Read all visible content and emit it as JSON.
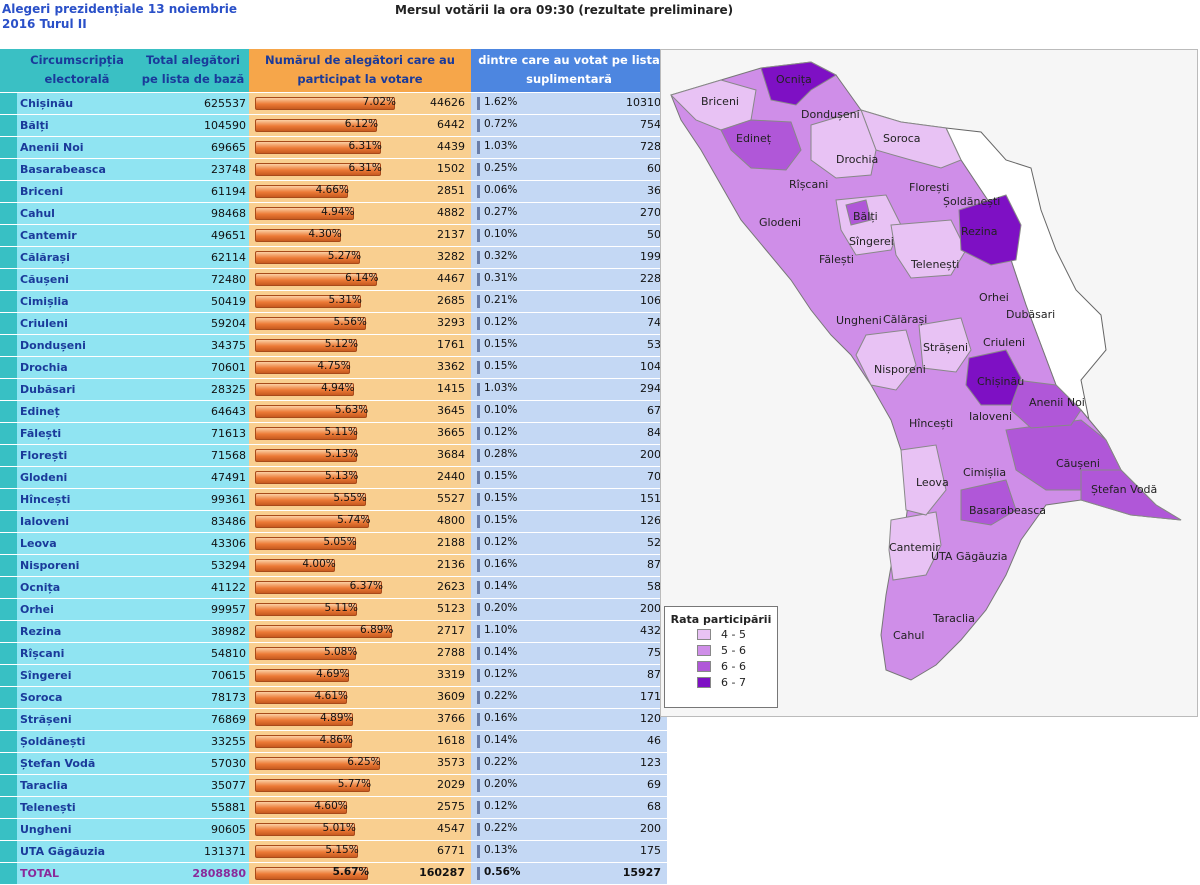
{
  "header": {
    "title": "Alegeri prezidențiale 13 noiembrie 2016 Turul II",
    "subtitle": "Mersul votării la ora 09:30 (rezultate preliminare)"
  },
  "columns": {
    "col1": "Circumscripția electorală",
    "col2": "Total alegători pe lista de bază",
    "col3": "Numărul de alegători care au participat la votare",
    "col4": "dintre care au votat pe lista suplimentară"
  },
  "rows": [
    {
      "name": "Chișinău",
      "total": "625537",
      "pct": "7.02%",
      "voted": "44626",
      "spct": "1.62%",
      "sval": "10310"
    },
    {
      "name": "Bălți",
      "total": "104590",
      "pct": "6.12%",
      "voted": "6442",
      "spct": "0.72%",
      "sval": "754"
    },
    {
      "name": "Anenii Noi",
      "total": "69665",
      "pct": "6.31%",
      "voted": "4439",
      "spct": "1.03%",
      "sval": "728"
    },
    {
      "name": "Basarabeasca",
      "total": "23748",
      "pct": "6.31%",
      "voted": "1502",
      "spct": "0.25%",
      "sval": "60"
    },
    {
      "name": "Briceni",
      "total": "61194",
      "pct": "4.66%",
      "voted": "2851",
      "spct": "0.06%",
      "sval": "36"
    },
    {
      "name": "Cahul",
      "total": "98468",
      "pct": "4.94%",
      "voted": "4882",
      "spct": "0.27%",
      "sval": "270"
    },
    {
      "name": "Cantemir",
      "total": "49651",
      "pct": "4.30%",
      "voted": "2137",
      "spct": "0.10%",
      "sval": "50"
    },
    {
      "name": "Călărași",
      "total": "62114",
      "pct": "5.27%",
      "voted": "3282",
      "spct": "0.32%",
      "sval": "199"
    },
    {
      "name": "Căușeni",
      "total": "72480",
      "pct": "6.14%",
      "voted": "4467",
      "spct": "0.31%",
      "sval": "228"
    },
    {
      "name": "Cimișlia",
      "total": "50419",
      "pct": "5.31%",
      "voted": "2685",
      "spct": "0.21%",
      "sval": "106"
    },
    {
      "name": "Criuleni",
      "total": "59204",
      "pct": "5.56%",
      "voted": "3293",
      "spct": "0.12%",
      "sval": "74"
    },
    {
      "name": "Dondușeni",
      "total": "34375",
      "pct": "5.12%",
      "voted": "1761",
      "spct": "0.15%",
      "sval": "53"
    },
    {
      "name": "Drochia",
      "total": "70601",
      "pct": "4.75%",
      "voted": "3362",
      "spct": "0.15%",
      "sval": "104"
    },
    {
      "name": "Dubăsari",
      "total": "28325",
      "pct": "4.94%",
      "voted": "1415",
      "spct": "1.03%",
      "sval": "294"
    },
    {
      "name": "Edineț",
      "total": "64643",
      "pct": "5.63%",
      "voted": "3645",
      "spct": "0.10%",
      "sval": "67"
    },
    {
      "name": "Fălești",
      "total": "71613",
      "pct": "5.11%",
      "voted": "3665",
      "spct": "0.12%",
      "sval": "84"
    },
    {
      "name": "Florești",
      "total": "71568",
      "pct": "5.13%",
      "voted": "3684",
      "spct": "0.28%",
      "sval": "200"
    },
    {
      "name": "Glodeni",
      "total": "47491",
      "pct": "5.13%",
      "voted": "2440",
      "spct": "0.15%",
      "sval": "70"
    },
    {
      "name": "Hîncești",
      "total": "99361",
      "pct": "5.55%",
      "voted": "5527",
      "spct": "0.15%",
      "sval": "151"
    },
    {
      "name": "Ialoveni",
      "total": "83486",
      "pct": "5.74%",
      "voted": "4800",
      "spct": "0.15%",
      "sval": "126"
    },
    {
      "name": "Leova",
      "total": "43306",
      "pct": "5.05%",
      "voted": "2188",
      "spct": "0.12%",
      "sval": "52"
    },
    {
      "name": "Nisporeni",
      "total": "53294",
      "pct": "4.00%",
      "voted": "2136",
      "spct": "0.16%",
      "sval": "87"
    },
    {
      "name": "Ocnița",
      "total": "41122",
      "pct": "6.37%",
      "voted": "2623",
      "spct": "0.14%",
      "sval": "58"
    },
    {
      "name": "Orhei",
      "total": "99957",
      "pct": "5.11%",
      "voted": "5123",
      "spct": "0.20%",
      "sval": "200"
    },
    {
      "name": "Rezina",
      "total": "38982",
      "pct": "6.89%",
      "voted": "2717",
      "spct": "1.10%",
      "sval": "432"
    },
    {
      "name": "Rîșcani",
      "total": "54810",
      "pct": "5.08%",
      "voted": "2788",
      "spct": "0.14%",
      "sval": "75"
    },
    {
      "name": "Sîngerei",
      "total": "70615",
      "pct": "4.69%",
      "voted": "3319",
      "spct": "0.12%",
      "sval": "87"
    },
    {
      "name": "Soroca",
      "total": "78173",
      "pct": "4.61%",
      "voted": "3609",
      "spct": "0.22%",
      "sval": "171"
    },
    {
      "name": "Strășeni",
      "total": "76869",
      "pct": "4.89%",
      "voted": "3766",
      "spct": "0.16%",
      "sval": "120"
    },
    {
      "name": "Șoldănești",
      "total": "33255",
      "pct": "4.86%",
      "voted": "1618",
      "spct": "0.14%",
      "sval": "46"
    },
    {
      "name": "Ștefan Vodă",
      "total": "57030",
      "pct": "6.25%",
      "voted": "3573",
      "spct": "0.22%",
      "sval": "123"
    },
    {
      "name": "Taraclia",
      "total": "35077",
      "pct": "5.77%",
      "voted": "2029",
      "spct": "0.20%",
      "sval": "69"
    },
    {
      "name": "Telenești",
      "total": "55881",
      "pct": "4.60%",
      "voted": "2575",
      "spct": "0.12%",
      "sval": "68"
    },
    {
      "name": "Ungheni",
      "total": "90605",
      "pct": "5.01%",
      "voted": "4547",
      "spct": "0.22%",
      "sval": "200"
    },
    {
      "name": "UTA Găgăuzia",
      "total": "131371",
      "pct": "5.15%",
      "voted": "6771",
      "spct": "0.13%",
      "sval": "175"
    }
  ],
  "total": {
    "name": "TOTAL",
    "total": "2808880",
    "pct": "5.67%",
    "voted": "160287",
    "spct": "0.56%",
    "sval": "15927"
  },
  "map": {
    "labels": [
      "Ocnița",
      "Briceni",
      "Dondușeni",
      "Edineț",
      "Soroca",
      "Drochia",
      "Rîșcani",
      "Florești",
      "Șoldănești",
      "Glodeni",
      "Bălți",
      "Rezina",
      "Sîngerei",
      "Fălești",
      "Telenești",
      "Orhei",
      "Dubăsari",
      "Ungheni",
      "Călărași",
      "Criuleni",
      "Strășeni",
      "Nisporeni",
      "Chișinău",
      "Anenii Noi",
      "Ialoveni",
      "Hîncești",
      "Căușeni",
      "Cimișlia",
      "Ștefan Vodă",
      "Leova",
      "Basarabeasca",
      "Cantemir",
      "UTA Găgăuzia",
      "Taraclia",
      "Cahul"
    ],
    "colors": {
      "c45": "#e8c2f4",
      "c56": "#cf8ee8",
      "c66": "#b057d8",
      "c67": "#7e10c4",
      "outside": "#ffffff"
    }
  },
  "legend": {
    "title": "Rata participării",
    "items": [
      {
        "label": "4 - 5",
        "color": "#e8c2f4"
      },
      {
        "label": "5 - 6",
        "color": "#cf8ee8"
      },
      {
        "label": "6 - 6",
        "color": "#b057d8"
      },
      {
        "label": "6 - 7",
        "color": "#7e10c4"
      }
    ]
  }
}
